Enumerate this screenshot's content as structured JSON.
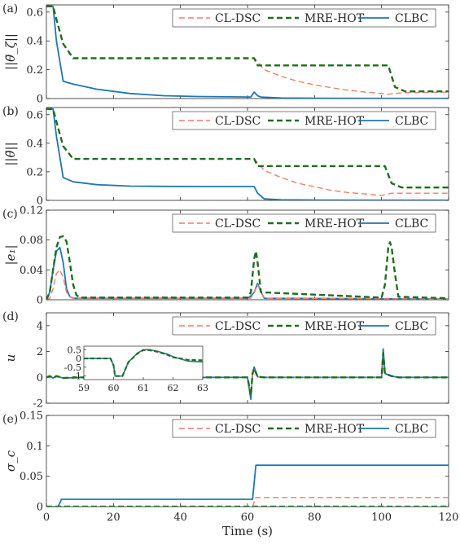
{
  "chart_data": [
    {
      "type": "line",
      "panel_label": "(a)",
      "ylabel": "||θ̃_ζ||",
      "xlim": [
        0,
        120
      ],
      "ylim": [
        0,
        0.65
      ],
      "yticks": [
        0,
        0.2,
        0.4,
        0.6
      ],
      "ytick_labels": [
        "0",
        "0.2",
        "0.4",
        "0.6"
      ],
      "xticks": [
        0,
        20,
        40,
        60,
        80,
        100,
        120
      ],
      "legend": "top-right",
      "series": [
        {
          "name": "CL-DSC",
          "style": "dashed",
          "color": "#f07f6a",
          "x": [
            0,
            2,
            3,
            5,
            8,
            62,
            65,
            70,
            75,
            80,
            85,
            90,
            95,
            100,
            102,
            106,
            120
          ],
          "y": [
            0.64,
            0.64,
            0.55,
            0.38,
            0.28,
            0.28,
            0.2,
            0.155,
            0.12,
            0.095,
            0.075,
            0.058,
            0.045,
            0.035,
            0.03,
            0.04,
            0.045
          ]
        },
        {
          "name": "MRE-HOT",
          "style": "dashed",
          "color": "#1f6e1f",
          "x": [
            0,
            2,
            3,
            5,
            8,
            62,
            63,
            102,
            104,
            107,
            120
          ],
          "y": [
            0.64,
            0.64,
            0.55,
            0.38,
            0.28,
            0.28,
            0.23,
            0.23,
            0.08,
            0.05,
            0.05
          ]
        },
        {
          "name": "CLBC",
          "style": "solid",
          "color": "#1f77b4",
          "x": [
            0,
            2,
            3,
            5,
            8,
            15,
            25,
            35,
            45,
            55,
            61,
            62,
            63,
            64,
            70,
            80,
            100,
            120
          ],
          "y": [
            0.64,
            0.64,
            0.4,
            0.12,
            0.1,
            0.065,
            0.035,
            0.02,
            0.014,
            0.012,
            0.011,
            0.045,
            0.02,
            0.01,
            0.004,
            0.002,
            0.001,
            0.001
          ]
        }
      ]
    },
    {
      "type": "line",
      "panel_label": "(b)",
      "ylabel": "||θ̃||",
      "xlim": [
        0,
        120
      ],
      "ylim": [
        0,
        0.65
      ],
      "yticks": [
        0,
        0.2,
        0.4,
        0.6
      ],
      "ytick_labels": [
        "0",
        "0.2",
        "0.4",
        "0.6"
      ],
      "xticks": [
        0,
        20,
        40,
        60,
        80,
        100,
        120
      ],
      "legend": "top-right",
      "series": [
        {
          "name": "CL-DSC",
          "style": "dashed",
          "color": "#f07f6a",
          "x": [
            0,
            2,
            3,
            5,
            8,
            62,
            65,
            70,
            75,
            80,
            85,
            90,
            95,
            100,
            101,
            103,
            120
          ],
          "y": [
            0.64,
            0.64,
            0.55,
            0.38,
            0.29,
            0.29,
            0.21,
            0.16,
            0.12,
            0.095,
            0.07,
            0.055,
            0.045,
            0.035,
            0.04,
            0.05,
            0.05
          ]
        },
        {
          "name": "MRE-HOT",
          "style": "dashed",
          "color": "#1f6e1f",
          "x": [
            0,
            2,
            3,
            5,
            8,
            62,
            63,
            101,
            103,
            106,
            120
          ],
          "y": [
            0.64,
            0.64,
            0.55,
            0.38,
            0.29,
            0.29,
            0.24,
            0.24,
            0.12,
            0.09,
            0.09
          ]
        },
        {
          "name": "CLBC",
          "style": "solid",
          "color": "#1f77b4",
          "x": [
            0,
            2,
            3,
            5,
            8,
            15,
            25,
            35,
            45,
            55,
            62,
            63,
            65,
            70,
            80,
            100,
            120
          ],
          "y": [
            0.64,
            0.64,
            0.45,
            0.16,
            0.13,
            0.11,
            0.1,
            0.098,
            0.097,
            0.097,
            0.097,
            0.05,
            0.01,
            0.004,
            0.002,
            0.001,
            0.001
          ]
        }
      ]
    },
    {
      "type": "line",
      "panel_label": "(c)",
      "ylabel": "|e₁|",
      "xlim": [
        0,
        120
      ],
      "ylim": [
        0,
        0.12
      ],
      "yticks": [
        0,
        0.04,
        0.08,
        0.12
      ],
      "ytick_labels": [
        "0",
        "0.04",
        "0.08",
        "0.12"
      ],
      "xticks": [
        0,
        20,
        40,
        60,
        80,
        100,
        120
      ],
      "legend": "top-right",
      "series": [
        {
          "name": "CL-DSC",
          "style": "dashed",
          "color": "#f07f6a",
          "x": [
            0,
            1,
            2,
            3,
            4,
            5,
            6,
            7,
            8,
            61,
            62,
            63,
            64,
            65,
            120
          ],
          "y": [
            0,
            0.002,
            0.015,
            0.035,
            0.04,
            0.03,
            0.01,
            0.004,
            0.002,
            0.002,
            0.01,
            0.02,
            0.01,
            0.002,
            0.001
          ]
        },
        {
          "name": "MRE-HOT",
          "style": "dashed",
          "color": "#1f6e1f",
          "x": [
            0,
            1,
            2,
            3,
            4,
            5,
            6,
            7,
            8,
            9,
            10,
            60,
            61,
            62,
            62.5,
            63,
            64,
            100,
            101,
            102,
            102.5,
            103,
            104,
            105,
            120
          ],
          "y": [
            0,
            0.01,
            0.04,
            0.07,
            0.084,
            0.085,
            0.078,
            0.05,
            0.02,
            0.006,
            0.003,
            0.003,
            0.01,
            0.055,
            0.065,
            0.05,
            0.01,
            0.003,
            0.02,
            0.07,
            0.077,
            0.07,
            0.035,
            0.004,
            0.002
          ]
        },
        {
          "name": "CLBC",
          "style": "solid",
          "color": "#1f77b4",
          "x": [
            0,
            1,
            2,
            3,
            4,
            5,
            6,
            7,
            8,
            60,
            61,
            62,
            63,
            64,
            65,
            120
          ],
          "y": [
            0,
            0.01,
            0.04,
            0.065,
            0.07,
            0.05,
            0.015,
            0.004,
            0.002,
            0.002,
            0.005,
            0.01,
            0.022,
            0.01,
            0.002,
            0.001
          ]
        }
      ]
    },
    {
      "type": "line",
      "panel_label": "(d)",
      "ylabel": "u",
      "xlim": [
        0,
        120
      ],
      "ylim": [
        -2,
        5
      ],
      "yticks": [
        -2,
        0,
        2,
        4
      ],
      "ytick_labels": [
        "-2",
        "0",
        "2",
        "4"
      ],
      "xticks": [
        0,
        20,
        40,
        60,
        80,
        100,
        120
      ],
      "legend": "top-right",
      "series": [
        {
          "name": "CL-DSC",
          "style": "dashed",
          "color": "#f07f6a",
          "x": [
            0,
            1,
            2,
            3,
            5,
            10,
            60,
            61,
            61.5,
            62,
            63,
            65,
            100,
            100.5,
            101,
            102,
            103,
            105,
            120
          ],
          "y": [
            0,
            0.1,
            -0.05,
            0.1,
            -0.05,
            0,
            0,
            -1.2,
            0.2,
            0.6,
            0.05,
            0,
            0,
            1.5,
            0.3,
            0.15,
            0.1,
            0,
            0
          ]
        },
        {
          "name": "MRE-HOT",
          "style": "dashed",
          "color": "#1f6e1f",
          "x": [
            0,
            1,
            2,
            3,
            5,
            10,
            60,
            61,
            61.5,
            62,
            63,
            65,
            100,
            100.5,
            101,
            102,
            103,
            105,
            120
          ],
          "y": [
            0,
            0.1,
            -0.05,
            0.1,
            -0.05,
            0,
            0,
            -1.4,
            0.3,
            0.7,
            0.05,
            0,
            0,
            1.9,
            0.3,
            0.2,
            0.1,
            0,
            0
          ]
        },
        {
          "name": "CLBC",
          "style": "solid",
          "color": "#1f77b4",
          "x": [
            0,
            1,
            2,
            3,
            5,
            10,
            60,
            61,
            61.5,
            62,
            63,
            65,
            100,
            100.5,
            101,
            102,
            103,
            105,
            120
          ],
          "y": [
            0,
            0.1,
            -0.05,
            0.1,
            -0.05,
            0,
            0,
            -1.7,
            0.3,
            0.8,
            0.05,
            0,
            0,
            2.2,
            0.3,
            0.2,
            0.1,
            0,
            0
          ]
        }
      ],
      "inset": {
        "xlim": [
          59,
          63
        ],
        "ylim": [
          -1.2,
          0.7
        ],
        "xticks": [
          59,
          60,
          61,
          62,
          63
        ],
        "yticks": [
          0.5,
          0,
          -0.5,
          -1
        ],
        "ytick_labels": [
          "0.5",
          "0",
          "-0.5",
          "-1"
        ],
        "series": [
          {
            "name": "CL-DSC",
            "x": [
              59,
              59.5,
              59.9,
              60,
              60.05,
              60.3,
              60.5,
              60.8,
              61,
              61.2,
              61.5,
              61.8,
              62,
              62.5,
              63
            ],
            "y": [
              0,
              0,
              0,
              -0.4,
              -1.0,
              -1.0,
              -0.2,
              0.25,
              0.45,
              0.45,
              0.35,
              0.2,
              0.05,
              -0.1,
              -0.1
            ]
          },
          {
            "name": "MRE-HOT",
            "x": [
              59,
              59.5,
              59.9,
              60,
              60.05,
              60.3,
              60.5,
              60.8,
              61,
              61.2,
              61.5,
              61.8,
              62,
              62.5,
              63
            ],
            "y": [
              0,
              0,
              0,
              -0.4,
              -1.0,
              -1.0,
              -0.2,
              0.28,
              0.48,
              0.48,
              0.38,
              0.22,
              0.07,
              -0.08,
              -0.1
            ]
          },
          {
            "name": "CLBC",
            "x": [
              59,
              59.5,
              59.9,
              60,
              60.05,
              60.3,
              60.5,
              60.8,
              61,
              61.2,
              61.5,
              61.8,
              62,
              62.5,
              63
            ],
            "y": [
              0,
              0,
              0,
              -0.4,
              -1.0,
              -1.0,
              -0.2,
              0.3,
              0.5,
              0.5,
              0.4,
              0.25,
              0.1,
              -0.15,
              -0.2
            ]
          }
        ]
      }
    },
    {
      "type": "line",
      "panel_label": "(e)",
      "ylabel": "σ_c",
      "xlabel": "Time (s)",
      "xlim": [
        0,
        120
      ],
      "ylim": [
        0,
        0.15
      ],
      "yticks": [
        0,
        0.05,
        0.1,
        0.15
      ],
      "ytick_labels": [
        "0",
        "0.05",
        "0.1",
        "0.15"
      ],
      "xticks": [
        0,
        20,
        40,
        60,
        80,
        100,
        120
      ],
      "xtick_labels": [
        "0",
        "20",
        "40",
        "60",
        "80",
        "100",
        "120"
      ],
      "legend": "top-right",
      "series": [
        {
          "name": "CL-DSC",
          "style": "dashed",
          "color": "#f07f6a",
          "x": [
            0,
            61.5,
            62.5,
            120
          ],
          "y": [
            0,
            0,
            0.015,
            0.015
          ]
        },
        {
          "name": "MRE-HOT",
          "style": "dashed",
          "color": "#1f6e1f",
          "x": [
            0,
            120
          ],
          "y": [
            0,
            0
          ]
        },
        {
          "name": "CLBC",
          "style": "solid",
          "color": "#1f77b4",
          "x": [
            0,
            3.5,
            4.5,
            61.5,
            62.5,
            120
          ],
          "y": [
            0,
            0,
            0.012,
            0.012,
            0.068,
            0.068
          ]
        }
      ]
    }
  ]
}
